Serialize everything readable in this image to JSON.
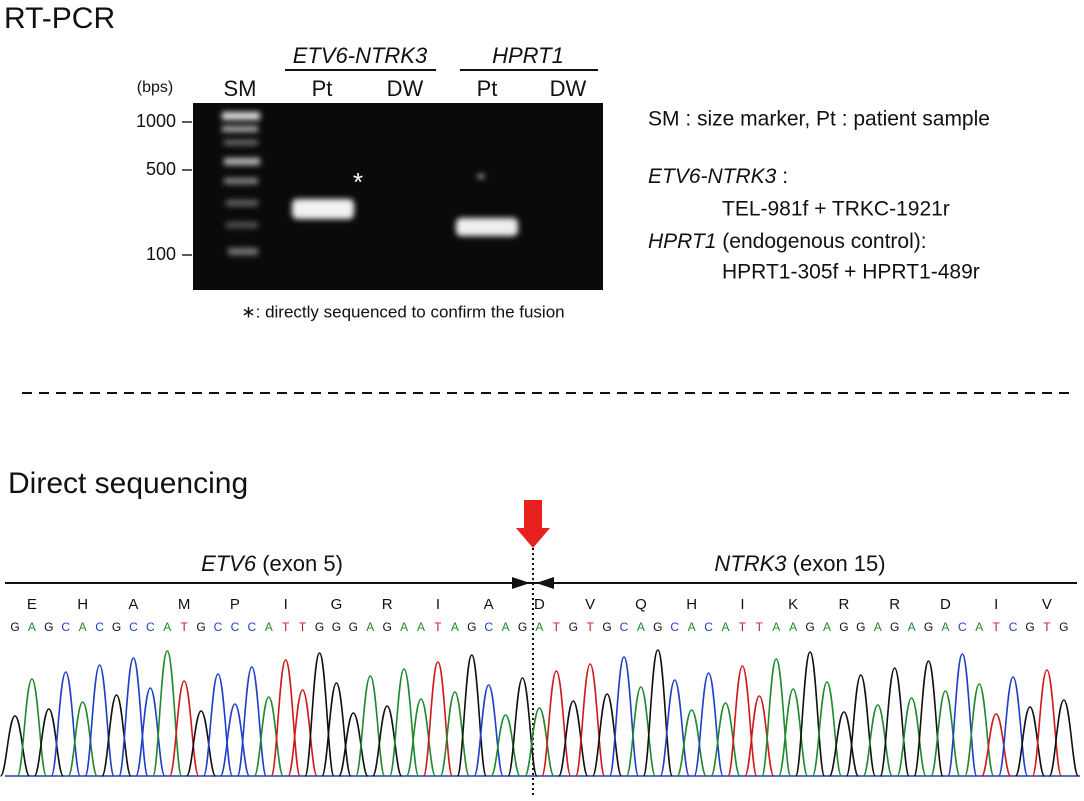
{
  "rt_pcr": {
    "title": "RT-PCR",
    "unit": "(bps)",
    "size_labels": [
      "1000",
      "500",
      "100"
    ],
    "groups": [
      "ETV6-NTRK3",
      "HPRT1"
    ],
    "lanes": [
      "SM",
      "Pt",
      "DW",
      "Pt",
      "DW"
    ],
    "asterisk": "*",
    "footnote": "∗: directly sequenced to confirm the fusion",
    "legend": {
      "line1": "SM :  size marker, Pt : patient sample",
      "fusion_name": "ETV6-NTRK3",
      "fusion_colon": " :",
      "fusion_primers": "TEL-981f + TRKC-1921r",
      "control_name": "HPRT1",
      "control_note": " (endogenous control):",
      "control_primers": "HPRT1-305f + HPRT1-489r"
    }
  },
  "sequencing": {
    "title": "Direct sequencing",
    "left_gene": "ETV6",
    "left_exon": " (exon 5)",
    "right_gene": "NTRK3",
    "right_exon": " (exon 15)",
    "amino_acids": [
      "E",
      "H",
      "A",
      "M",
      "P",
      "I",
      "G",
      "R",
      "I",
      "A",
      "D",
      "V",
      "Q",
      "H",
      "I",
      "K",
      "R",
      "R",
      "D",
      "I",
      "V"
    ],
    "nucleotides": [
      "G",
      "A",
      "G",
      "C",
      "A",
      "C",
      "G",
      "C",
      "C",
      "A",
      "T",
      "G",
      "C",
      "C",
      "C",
      "A",
      "T",
      "T",
      "G",
      "G",
      "G",
      "A",
      "G",
      "A",
      "A",
      "T",
      "A",
      "G",
      "C",
      "A",
      "G",
      "A",
      "T",
      "G",
      "T",
      "G",
      "C",
      "A",
      "G",
      "C",
      "A",
      "C",
      "A",
      "T",
      "T",
      "A",
      "A",
      "G",
      "A",
      "G",
      "G",
      "A",
      "G",
      "A",
      "G",
      "A",
      "C",
      "A",
      "T",
      "C",
      "G",
      "T",
      "G"
    ]
  }
}
